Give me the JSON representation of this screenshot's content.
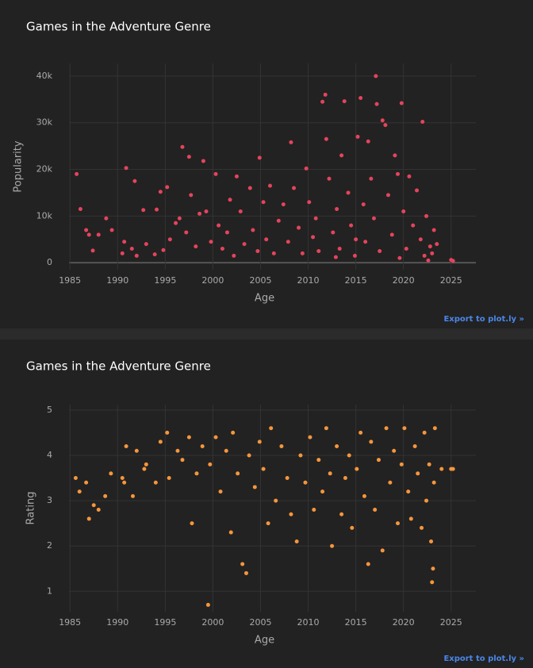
{
  "chart_data": [
    {
      "type": "scatter",
      "title": "Games in the Adventure Genre",
      "x_label": "Age",
      "y_label": "Popularity",
      "color": "#e5445c",
      "export_link": "Export to plot.ly »",
      "grid": true,
      "zeroline": true,
      "xlim": [
        1984.9,
        2027.6
      ],
      "xticks": [
        1985,
        1990,
        1995,
        2000,
        2005,
        2010,
        2015,
        2020,
        2025
      ],
      "ylim": [
        -1500,
        42700
      ],
      "yticks": [
        0,
        {
          "value": 10000,
          "label": "10k"
        },
        {
          "value": 20000,
          "label": "20k"
        },
        {
          "value": 30000,
          "label": "30k"
        },
        {
          "value": 40000,
          "label": "40k"
        }
      ],
      "x": [
        1985.7,
        1986.1,
        1986.7,
        1987.0,
        1987.4,
        1988,
        1988.8,
        1989.4,
        1990.5,
        1990.7,
        1990.9,
        1991.5,
        1991.8,
        1992,
        1992.7,
        1993,
        1993.9,
        1994.1,
        1994.5,
        1994.8,
        1995.2,
        1995.5,
        1996.1,
        1996.5,
        1996.8,
        1997.2,
        1997.5,
        1997.7,
        1998.2,
        1998.6,
        1999,
        1999.3,
        1999.8,
        2000.3,
        2000.6,
        2001,
        2001.5,
        2001.8,
        2002.2,
        2002.5,
        2002.9,
        2003.3,
        2003.9,
        2004.2,
        2004.7,
        2004.9,
        2005.3,
        2005.6,
        2006,
        2006.4,
        2006.9,
        2007.4,
        2007.9,
        2008.2,
        2008.5,
        2009,
        2009.4,
        2009.8,
        2010.1,
        2010.5,
        2010.8,
        2011.1,
        2011.5,
        2011.8,
        2011.9,
        2012.2,
        2012.6,
        2013,
        2013.3,
        2013.5,
        2013.8,
        2014.2,
        2014.5,
        2014.9,
        2015.2,
        2015.5,
        2015.8,
        2016,
        2016.3,
        2016.6,
        2016.9,
        2017.1,
        2017.2,
        2017.5,
        2017.8,
        2018.1,
        2018.4,
        2018.8,
        2019.1,
        2019.4,
        2019.8,
        2020,
        2020.3,
        2020.6,
        2021,
        2021.4,
        2021.8,
        2022,
        2022.2,
        2022.4,
        2022.6,
        2022.8,
        2023,
        2023.2,
        2023.5,
        2025,
        2025.2,
        2019.6,
        2015,
        2012.9
      ],
      "y": [
        19000,
        11500,
        7000,
        6000,
        2600,
        6000,
        9500,
        7000,
        2000,
        4500,
        20300,
        3000,
        17500,
        1500,
        11300,
        4000,
        1800,
        11400,
        15200,
        2700,
        16200,
        5000,
        8500,
        9500,
        24800,
        6500,
        22700,
        14500,
        3500,
        10500,
        21800,
        11000,
        4500,
        19000,
        8000,
        3000,
        6500,
        13500,
        1500,
        18500,
        11000,
        4000,
        16000,
        7000,
        2500,
        22500,
        13000,
        5000,
        16500,
        2000,
        9000,
        12500,
        4500,
        25800,
        16000,
        7500,
        2000,
        20200,
        13000,
        5500,
        9500,
        2500,
        34500,
        36000,
        26500,
        18000,
        6500,
        11500,
        3000,
        23000,
        34600,
        15000,
        8000,
        1500,
        27000,
        35300,
        12500,
        4500,
        26000,
        18000,
        9500,
        40000,
        34000,
        2500,
        30500,
        29500,
        14500,
        6000,
        23000,
        19000,
        34200,
        11000,
        3000,
        18500,
        8000,
        15500,
        5000,
        30200,
        1500,
        10000,
        500,
        3500,
        2000,
        7000,
        4000,
        600,
        400,
        1000,
        5000,
        1200
      ]
    },
    {
      "type": "scatter",
      "title": "Games in the Adventure Genre",
      "x_label": "Age",
      "y_label": "Rating",
      "color": "#f6963c",
      "export_link": "Export to plot.ly »",
      "grid": true,
      "zeroline": false,
      "xlim": [
        1984.9,
        2027.6
      ],
      "xticks": [
        1985,
        1990,
        1995,
        2000,
        2005,
        2010,
        2015,
        2020,
        2025
      ],
      "ylim": [
        0.55,
        5.12
      ],
      "yticks": [
        1,
        2,
        3,
        4,
        5
      ],
      "x": [
        1985.6,
        1986,
        1986.7,
        1987,
        1987.5,
        1988,
        1988.7,
        1989.3,
        1990.5,
        1990.7,
        1990.9,
        1991.6,
        1992,
        1992.8,
        1993,
        1994,
        1994.5,
        1995.2,
        1995.4,
        1996.3,
        1996.8,
        1997.5,
        1997.8,
        1998.3,
        1998.9,
        1999.5,
        1999.7,
        2000.3,
        2000.8,
        2001.4,
        2001.9,
        2002.1,
        2002.6,
        2003.1,
        2003.5,
        2003.8,
        2004.4,
        2004.9,
        2005.3,
        2005.8,
        2006.1,
        2006.6,
        2007.2,
        2007.8,
        2008.2,
        2008.8,
        2009.2,
        2009.7,
        2010.2,
        2010.6,
        2011.1,
        2011.5,
        2011.9,
        2012.3,
        2012.5,
        2013,
        2013.5,
        2013.9,
        2014.3,
        2014.6,
        2015.1,
        2015.5,
        2015.9,
        2016.3,
        2016.6,
        2017,
        2017.4,
        2017.8,
        2018.2,
        2018.6,
        2019,
        2019.4,
        2019.8,
        2020.1,
        2020.5,
        2020.8,
        2021.2,
        2021.5,
        2021.9,
        2022.2,
        2022.4,
        2022.7,
        2022.9,
        2023,
        2023.1,
        2023.2,
        2023.3,
        2024,
        2025,
        2025.2
      ],
      "y": [
        3.5,
        3.2,
        3.4,
        2.6,
        2.9,
        2.8,
        3.1,
        3.6,
        3.5,
        3.4,
        4.2,
        3.1,
        4.1,
        3.7,
        3.8,
        3.4,
        4.3,
        4.5,
        3.5,
        4.1,
        3.9,
        4.4,
        2.5,
        3.6,
        4.2,
        0.7,
        3.8,
        4.4,
        3.2,
        4.1,
        2.3,
        4.5,
        3.6,
        1.6,
        1.4,
        4.0,
        3.3,
        4.3,
        3.7,
        2.5,
        4.6,
        3.0,
        4.2,
        3.5,
        2.7,
        2.1,
        4.0,
        3.4,
        4.4,
        2.8,
        3.9,
        3.2,
        4.6,
        3.6,
        2.0,
        4.2,
        2.7,
        3.5,
        4.0,
        2.4,
        3.7,
        4.5,
        3.1,
        1.6,
        4.3,
        2.8,
        3.9,
        1.9,
        4.6,
        3.4,
        4.1,
        2.5,
        3.8,
        4.6,
        3.2,
        2.6,
        4.2,
        3.6,
        2.4,
        4.5,
        3.0,
        3.8,
        2.1,
        1.2,
        1.5,
        3.4,
        4.6,
        3.7,
        3.7,
        3.7
      ]
    }
  ]
}
